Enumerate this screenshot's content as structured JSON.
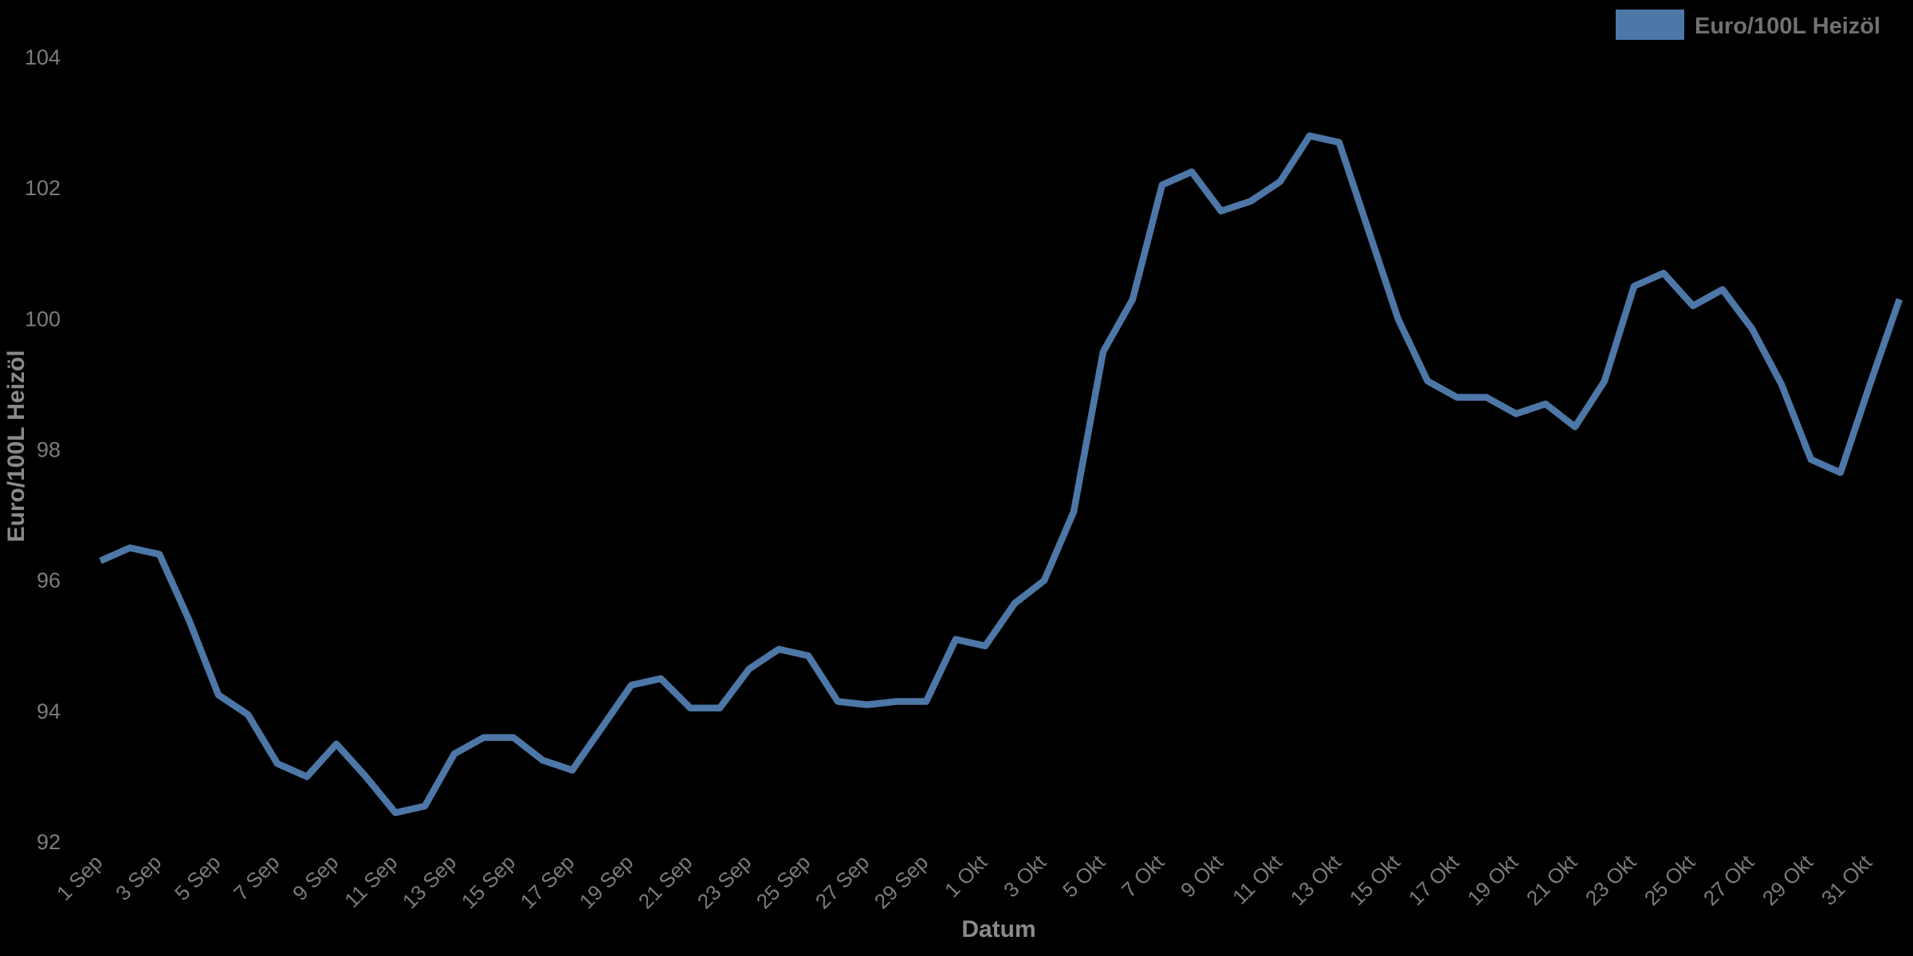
{
  "chart_data": {
    "type": "line",
    "title": "",
    "xlabel": "Datum",
    "ylabel": "Euro/100L Heizöl",
    "background_color": "#000000",
    "line_color": "#4d77a7",
    "tick_text_color": "#7c7c7c",
    "axis_label_color": "#8a8a8a",
    "legend_text_color": "#717171",
    "grid": false,
    "legend": {
      "position": "top-right",
      "entries": [
        {
          "label": "Euro/100L Heizöl",
          "color": "#4d77a7"
        }
      ]
    },
    "ylim": [
      92,
      104
    ],
    "y_ticks": [
      92,
      94,
      96,
      98,
      100,
      102,
      104
    ],
    "x_tick_labels": [
      "1 Sep",
      "3 Sep",
      "5 Sep",
      "7 Sep",
      "9 Sep",
      "11 Sep",
      "13 Sep",
      "15 Sep",
      "17 Sep",
      "19 Sep",
      "21 Sep",
      "23 Sep",
      "25 Sep",
      "27 Sep",
      "29 Sep",
      "1 Okt",
      "3 Okt",
      "5 Okt",
      "7 Okt",
      "9 Okt",
      "11 Okt",
      "13 Okt",
      "15 Okt",
      "17 Okt",
      "19 Okt",
      "21 Okt",
      "23 Okt",
      "25 Okt",
      "27 Okt",
      "29 Okt",
      "31 Okt"
    ],
    "x": [
      "1 Sep",
      "2 Sep",
      "3 Sep",
      "4 Sep",
      "5 Sep",
      "6 Sep",
      "7 Sep",
      "8 Sep",
      "9 Sep",
      "10 Sep",
      "11 Sep",
      "12 Sep",
      "13 Sep",
      "14 Sep",
      "15 Sep",
      "16 Sep",
      "17 Sep",
      "18 Sep",
      "19 Sep",
      "20 Sep",
      "21 Sep",
      "22 Sep",
      "23 Sep",
      "24 Sep",
      "25 Sep",
      "26 Sep",
      "27 Sep",
      "28 Sep",
      "29 Sep",
      "30 Sep",
      "1 Okt",
      "2 Okt",
      "3 Okt",
      "4 Okt",
      "5 Okt",
      "6 Okt",
      "7 Okt",
      "8 Okt",
      "9 Okt",
      "10 Okt",
      "11 Okt",
      "12 Okt",
      "13 Okt",
      "14 Okt",
      "15 Okt",
      "16 Okt",
      "17 Okt",
      "18 Okt",
      "19 Okt",
      "20 Okt",
      "21 Okt",
      "22 Okt",
      "23 Okt",
      "24 Okt",
      "25 Okt",
      "26 Okt",
      "27 Okt",
      "28 Okt",
      "29 Okt",
      "30 Okt",
      "31 Okt",
      "1 Nov"
    ],
    "series": [
      {
        "name": "Euro/100L Heizöl",
        "values": [
          96.3,
          96.5,
          96.4,
          95.4,
          94.25,
          93.95,
          93.2,
          93.0,
          93.5,
          93.0,
          92.45,
          92.55,
          93.35,
          93.6,
          93.6,
          93.25,
          93.1,
          93.75,
          94.4,
          94.5,
          94.05,
          94.05,
          94.65,
          94.95,
          94.85,
          94.15,
          94.1,
          94.15,
          94.15,
          95.1,
          95.0,
          95.65,
          96.0,
          97.05,
          99.5,
          100.3,
          102.05,
          102.25,
          101.65,
          101.8,
          102.1,
          102.8,
          102.7,
          101.35,
          100.0,
          99.05,
          98.8,
          98.8,
          98.55,
          98.7,
          98.35,
          99.05,
          100.5,
          100.7,
          100.2,
          100.45,
          99.85,
          99.0,
          97.85,
          97.65,
          99.0,
          100.3
        ]
      }
    ]
  }
}
